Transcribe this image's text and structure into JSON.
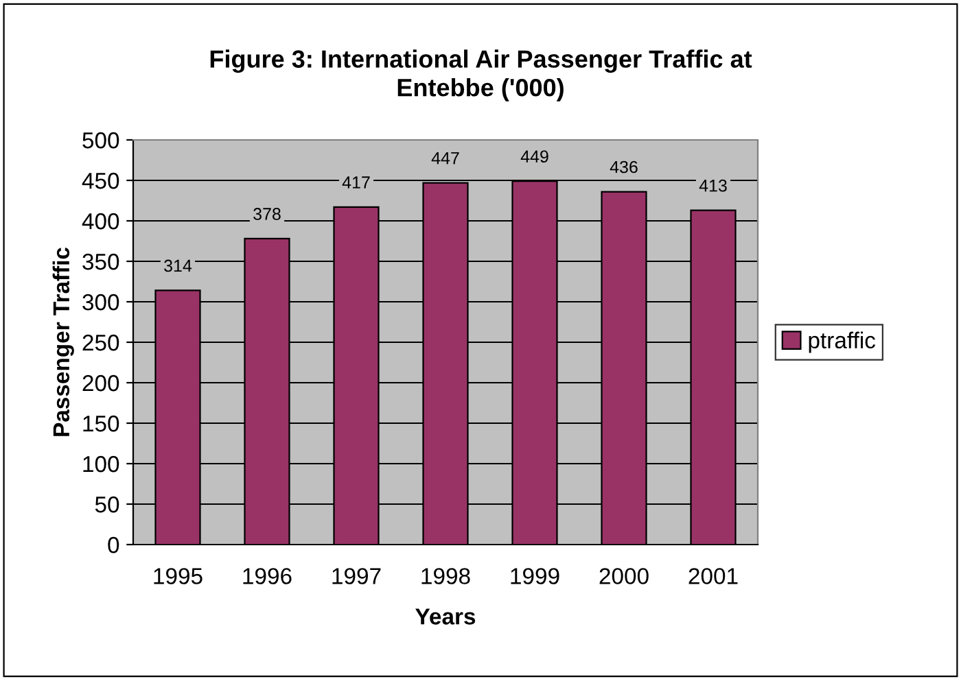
{
  "chart_data": {
    "type": "bar",
    "title": "Figure 3: International Air Passenger Traffic at\nEntebbe ('000)",
    "xlabel": "Years",
    "ylabel": "Passenger Traffic",
    "categories": [
      "1995",
      "1996",
      "1997",
      "1998",
      "1999",
      "2000",
      "2001"
    ],
    "series": [
      {
        "name": "ptraffic",
        "color": "#993366",
        "values": [
          314,
          378,
          417,
          447,
          449,
          436,
          413
        ]
      }
    ],
    "ylim": [
      0,
      500
    ],
    "yticks": [
      0,
      50,
      100,
      150,
      200,
      250,
      300,
      350,
      400,
      450,
      500
    ],
    "grid": "y",
    "legend": "right",
    "data_labels": true
  }
}
